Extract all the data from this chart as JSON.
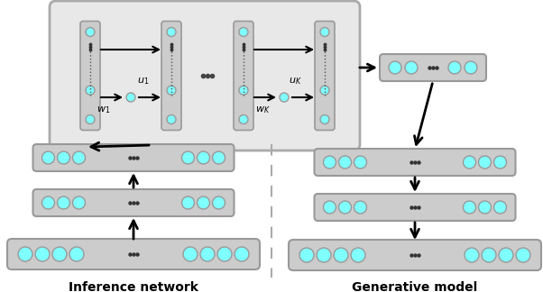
{
  "bg_color": "#ffffff",
  "node_face": "#80ffff",
  "node_edge": "#999999",
  "bar_fill": "#cccccc",
  "bar_edge": "#999999",
  "flow_box_fill": "#e8e8e8",
  "flow_box_edge": "#aaaaaa",
  "arrow_color": "#000000",
  "dashed_line_color": "#aaaaaa",
  "title_left": "Inference network",
  "title_right": "Generative model",
  "label_u1": "$u_1$",
  "label_w1": "$w_1$",
  "label_uK": "$u_K$",
  "label_wK": "$w_K$"
}
